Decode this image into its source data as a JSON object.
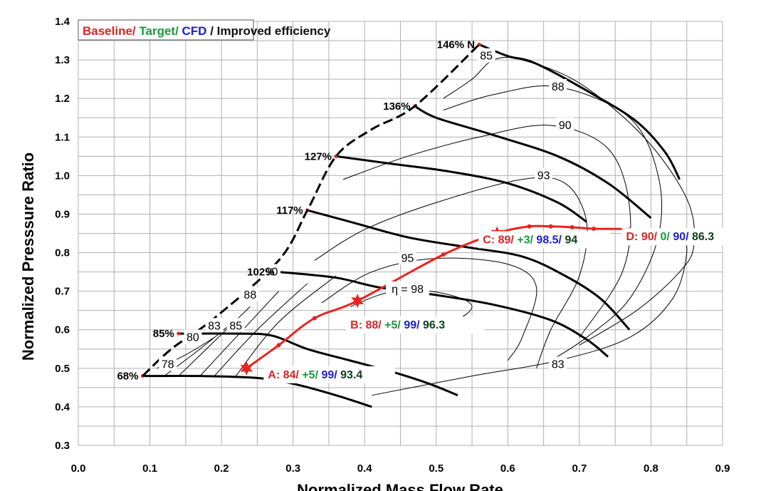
{
  "chart_data": {
    "type": "line",
    "title": "",
    "xlabel": "Normalized Mass Flow Rate",
    "ylabel": "Normalized Presssure Ratio",
    "xlim": [
      0.0,
      0.9
    ],
    "ylim": [
      0.3,
      1.4
    ],
    "grid": true,
    "x_ticks": [
      "0.0",
      "0.1",
      "0.2",
      "0.3",
      "0.4",
      "0.5",
      "0.6",
      "0.7",
      "0.8",
      "0.9"
    ],
    "y_ticks": [
      "0.3",
      "0.4",
      "0.5",
      "0.6",
      "0.7",
      "0.8",
      "0.9",
      "1.0",
      "1.1",
      "1.2",
      "1.3",
      "1.4"
    ],
    "legend": {
      "placement": "top-left",
      "parts": [
        {
          "text": "Baseline/",
          "color": "#e02020"
        },
        {
          "text": " Target/",
          "color": "#1a9a3a"
        },
        {
          "text": " CFD",
          "color": "#1c1cd6"
        },
        {
          "text": " / Improved efficiency",
          "color": "#111111"
        }
      ]
    },
    "surge_line": [
      [
        0.09,
        0.48
      ],
      [
        0.13,
        0.55
      ],
      [
        0.19,
        0.63
      ],
      [
        0.28,
        0.78
      ],
      [
        0.32,
        0.91
      ],
      [
        0.36,
        1.05
      ],
      [
        0.41,
        1.12
      ],
      [
        0.47,
        1.18
      ],
      [
        0.56,
        1.34
      ]
    ],
    "speed_lines": [
      {
        "label": "68%",
        "label_at": [
          0.09,
          0.48
        ],
        "points": [
          [
            0.09,
            0.48
          ],
          [
            0.17,
            0.48
          ],
          [
            0.25,
            0.475
          ],
          [
            0.3,
            0.46
          ],
          [
            0.36,
            0.43
          ],
          [
            0.41,
            0.4
          ]
        ]
      },
      {
        "label": "85%",
        "label_at": [
          0.14,
          0.59
        ],
        "points": [
          [
            0.14,
            0.59
          ],
          [
            0.22,
            0.59
          ],
          [
            0.27,
            0.585
          ],
          [
            0.32,
            0.55
          ],
          [
            0.38,
            0.52
          ],
          [
            0.44,
            0.49
          ],
          [
            0.49,
            0.46
          ],
          [
            0.53,
            0.43
          ]
        ]
      },
      {
        "label": "102%",
        "label_at": [
          0.28,
          0.75
        ],
        "points": [
          [
            0.28,
            0.75
          ],
          [
            0.36,
            0.735
          ],
          [
            0.42,
            0.71
          ],
          [
            0.5,
            0.69
          ],
          [
            0.58,
            0.665
          ],
          [
            0.66,
            0.625
          ],
          [
            0.71,
            0.575
          ],
          [
            0.74,
            0.53
          ]
        ]
      },
      {
        "label": "117%",
        "label_at": [
          0.32,
          0.91
        ],
        "points": [
          [
            0.32,
            0.91
          ],
          [
            0.38,
            0.88
          ],
          [
            0.46,
            0.84
          ],
          [
            0.54,
            0.815
          ],
          [
            0.62,
            0.79
          ],
          [
            0.68,
            0.74
          ],
          [
            0.73,
            0.68
          ],
          [
            0.77,
            0.6
          ]
        ]
      },
      {
        "label": "127%",
        "label_at": [
          0.36,
          1.05
        ],
        "points": [
          [
            0.36,
            1.05
          ],
          [
            0.44,
            1.03
          ],
          [
            0.52,
            1.01
          ],
          [
            0.6,
            0.98
          ],
          [
            0.67,
            0.93
          ],
          [
            0.71,
            0.88
          ]
        ]
      },
      {
        "label": "136%",
        "label_at": [
          0.47,
          1.18
        ],
        "points": [
          [
            0.47,
            1.18
          ],
          [
            0.5,
            1.15
          ],
          [
            0.58,
            1.105
          ],
          [
            0.67,
            1.05
          ],
          [
            0.74,
            0.98
          ],
          [
            0.8,
            0.89
          ]
        ]
      },
      {
        "label": "146% N",
        "label_at": [
          0.56,
          1.34
        ],
        "points": [
          [
            0.56,
            1.34
          ],
          [
            0.6,
            1.31
          ],
          [
            0.64,
            1.29
          ],
          [
            0.72,
            1.21
          ],
          [
            0.78,
            1.14
          ],
          [
            0.82,
            1.06
          ],
          [
            0.84,
            0.99
          ]
        ]
      }
    ],
    "efficiency_contours": [
      {
        "label": "78",
        "label_at": [
          0.125,
          0.51
        ],
        "points": [
          [
            0.11,
            0.5
          ],
          [
            0.15,
            0.535
          ],
          [
            0.19,
            0.58
          ]
        ]
      },
      {
        "label": "80",
        "label_at": [
          0.16,
          0.58
        ],
        "points": [
          [
            0.12,
            0.48
          ],
          [
            0.17,
            0.55
          ],
          [
            0.21,
            0.61
          ]
        ]
      },
      {
        "label": "83",
        "label_at": [
          0.19,
          0.61
        ],
        "points": [
          [
            0.14,
            0.48
          ],
          [
            0.19,
            0.57
          ],
          [
            0.24,
            0.66
          ]
        ]
      },
      {
        "label": "85",
        "label_at": [
          0.22,
          0.61
        ],
        "points": [
          [
            0.17,
            0.48
          ],
          [
            0.22,
            0.58
          ],
          [
            0.28,
            0.7
          ]
        ]
      },
      {
        "label": "88",
        "label_at": [
          0.24,
          0.69
        ],
        "points": [
          [
            0.19,
            0.48
          ],
          [
            0.25,
            0.6
          ],
          [
            0.32,
            0.72
          ]
        ]
      },
      {
        "label": "90",
        "label_at": [
          0.27,
          0.75
        ],
        "points": [
          [
            0.22,
            0.48
          ],
          [
            0.28,
            0.62
          ],
          [
            0.36,
            0.74
          ]
        ]
      },
      {
        "label": "η = 98",
        "label_at": [
          0.46,
          0.705
        ],
        "points": [
          [
            0.38,
            0.66
          ],
          [
            0.42,
            0.69
          ],
          [
            0.46,
            0.705
          ],
          [
            0.52,
            0.69
          ],
          [
            0.55,
            0.66
          ],
          [
            0.52,
            0.62
          ],
          [
            0.45,
            0.6
          ]
        ]
      },
      {
        "label": "95",
        "label_at": [
          0.46,
          0.785
        ],
        "points": [
          [
            0.34,
            0.67
          ],
          [
            0.41,
            0.75
          ],
          [
            0.5,
            0.785
          ],
          [
            0.6,
            0.77
          ],
          [
            0.64,
            0.71
          ],
          [
            0.62,
            0.58
          ],
          [
            0.6,
            0.52
          ]
        ]
      },
      {
        "label": "93",
        "label_at": [
          0.65,
          1.0
        ],
        "points": [
          [
            0.33,
            0.78
          ],
          [
            0.4,
            0.86
          ],
          [
            0.5,
            0.93
          ],
          [
            0.62,
            0.99
          ],
          [
            0.68,
            0.98
          ],
          [
            0.71,
            0.88
          ],
          [
            0.7,
            0.74
          ],
          [
            0.66,
            0.6
          ],
          [
            0.64,
            0.5
          ]
        ]
      },
      {
        "label": "90",
        "label_at": [
          0.68,
          1.13
        ],
        "points": [
          [
            0.37,
            0.99
          ],
          [
            0.46,
            1.05
          ],
          [
            0.56,
            1.1
          ],
          [
            0.66,
            1.13
          ],
          [
            0.74,
            1.07
          ],
          [
            0.77,
            0.92
          ],
          [
            0.76,
            0.75
          ],
          [
            0.7,
            0.58
          ]
        ]
      },
      {
        "label": "88",
        "label_at": [
          0.67,
          1.23
        ],
        "points": [
          [
            0.51,
            1.17
          ],
          [
            0.58,
            1.21
          ],
          [
            0.67,
            1.23
          ],
          [
            0.77,
            1.15
          ],
          [
            0.81,
            1.0
          ],
          [
            0.81,
            0.84
          ],
          [
            0.77,
            0.68
          ],
          [
            0.71,
            0.58
          ],
          [
            0.66,
            0.52
          ]
        ]
      },
      {
        "label": "85",
        "label_at": [
          0.57,
          1.31
        ],
        "points": [
          [
            0.51,
            1.2
          ],
          [
            0.55,
            1.25
          ],
          [
            0.58,
            1.3
          ],
          [
            0.62,
            1.3
          ],
          [
            0.7,
            1.24
          ],
          [
            0.79,
            1.1
          ],
          [
            0.85,
            0.94
          ],
          [
            0.86,
            0.82
          ],
          [
            0.84,
            0.75
          ],
          [
            0.78,
            0.65
          ],
          [
            0.7,
            0.56
          ]
        ]
      },
      {
        "label": "83",
        "label_at": [
          0.67,
          0.51
        ],
        "points": [
          [
            0.41,
            0.43
          ],
          [
            0.55,
            0.48
          ],
          [
            0.67,
            0.52
          ],
          [
            0.77,
            0.58
          ],
          [
            0.83,
            0.68
          ],
          [
            0.85,
            0.8
          ],
          [
            0.84,
            0.86
          ]
        ]
      }
    ],
    "improved_path": {
      "color": "#e8231e",
      "points": [
        [
          0.235,
          0.5
        ],
        [
          0.28,
          0.56
        ],
        [
          0.33,
          0.63
        ],
        [
          0.39,
          0.675
        ],
        [
          0.51,
          0.795
        ],
        [
          0.585,
          0.85
        ],
        [
          0.63,
          0.868
        ],
        [
          0.66,
          0.868
        ],
        [
          0.69,
          0.866
        ],
        [
          0.72,
          0.862
        ],
        [
          0.77,
          0.86
        ],
        [
          0.81,
          0.845
        ]
      ]
    },
    "operating_points": [
      {
        "name": "A",
        "x": 0.235,
        "y": 0.5,
        "baseline": "84",
        "target": "+5",
        "cfd": "99",
        "improved": "93.4",
        "label_text": {
          "head": "A: 84/",
          "target": " +5/",
          "cfd": " 99/",
          "improved": " 93.4"
        }
      },
      {
        "name": "B",
        "x": 0.39,
        "y": 0.675,
        "baseline": "88",
        "target": "+5",
        "cfd": "99",
        "improved": "96.3",
        "label_text": {
          "head": "B: 88/",
          "target": " +5/",
          "cfd": "  99/",
          "improved": " 96.3"
        }
      },
      {
        "name": "C",
        "x": 0.585,
        "y": 0.85,
        "baseline": "89",
        "target": "+3",
        "cfd": "98.5",
        "improved": "94",
        "label_text": {
          "head": "C: 89/",
          "target": " +3/",
          "cfd": " 98.5/",
          "improved": " 94"
        }
      },
      {
        "name": "D",
        "x": 0.81,
        "y": 0.845,
        "baseline": "90",
        "target": "0",
        "cfd": "90",
        "improved": "86.3",
        "label_text": {
          "head": "D: 90/",
          "target": " 0/",
          "cfd": " 90/",
          "improved": " 86.3"
        }
      }
    ],
    "colors": {
      "baseline": "#e02020",
      "target": "#1a9a3a",
      "cfd": "#1c1cd6",
      "improved": "#0f3d1a",
      "grid": "#b0b0b0"
    }
  }
}
